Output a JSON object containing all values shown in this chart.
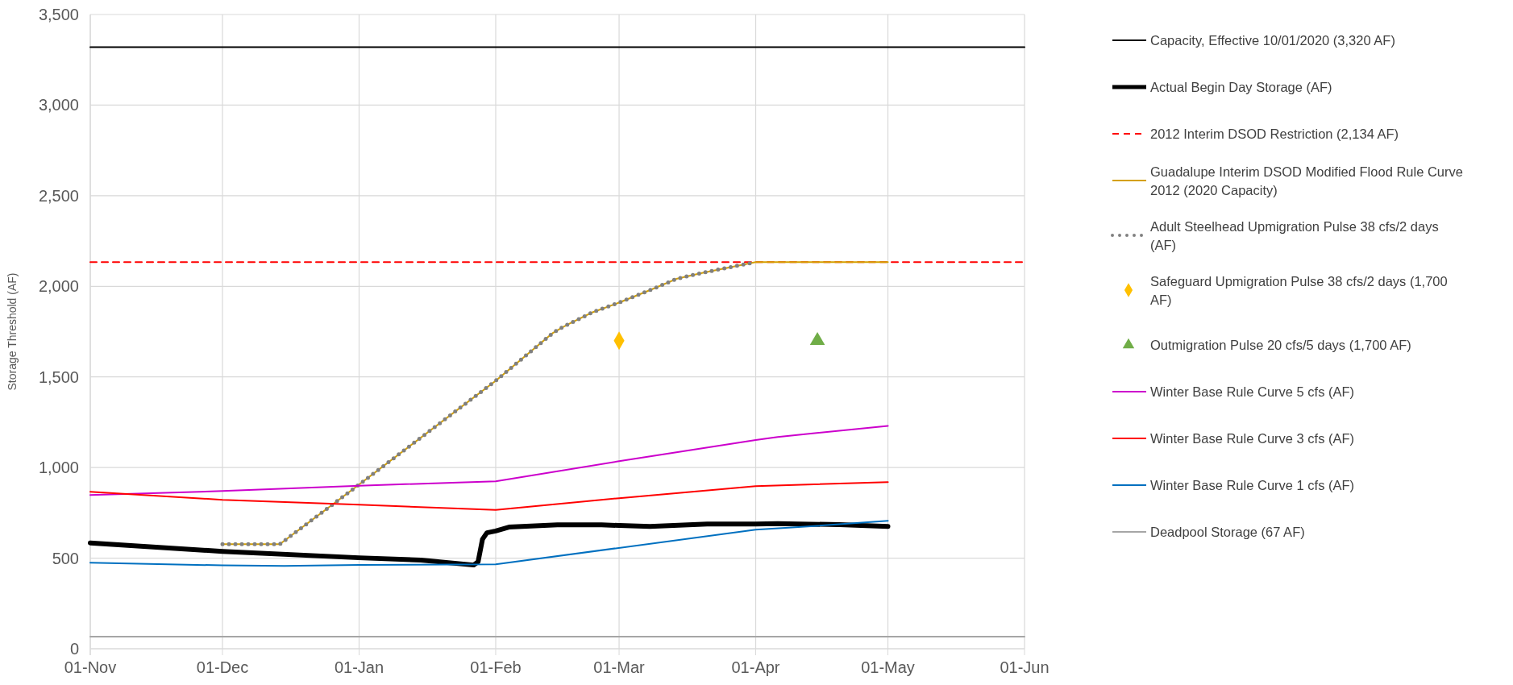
{
  "chart_data": {
    "type": "line",
    "ylabel": "Storage Threshold (AF)",
    "xlim": [
      "2020-11-01",
      "2021-06-01"
    ],
    "xticks": [
      {
        "value": "2020-11-01",
        "label": "01-Nov"
      },
      {
        "value": "2020-12-01",
        "label": "01-Dec"
      },
      {
        "value": "2021-01-01",
        "label": "01-Jan"
      },
      {
        "value": "2021-02-01",
        "label": "01-Feb"
      },
      {
        "value": "2021-03-01",
        "label": "01-Mar"
      },
      {
        "value": "2021-04-01",
        "label": "01-Apr"
      },
      {
        "value": "2021-05-01",
        "label": "01-May"
      },
      {
        "value": "2021-06-01",
        "label": "01-Jun"
      }
    ],
    "ylim": [
      0,
      3500
    ],
    "yticks": [
      0,
      {
        "value": 500,
        "label": "500"
      },
      {
        "value": 1000,
        "label": "1,000"
      },
      {
        "value": 1500,
        "label": "1,500"
      },
      {
        "value": 2000,
        "label": "2,000"
      },
      {
        "value": 2500,
        "label": "2,500"
      },
      {
        "value": 3000,
        "label": "3,000"
      },
      {
        "value": 3500,
        "label": "3,500"
      }
    ],
    "grid": true,
    "legend": "right",
    "series": [
      {
        "name": "Capacity, Effective 10/01/2020 (3,320 AF)",
        "color": "#000000",
        "x": [
          "2020-11-01",
          "2021-06-01"
        ],
        "values": [
          3320,
          3320
        ]
      },
      {
        "name": "Actual Begin Day Storage (AF)",
        "color": "#000000",
        "x": [
          "2020-11-01",
          "2020-12-01",
          "2021-01-01",
          "2021-01-15",
          "2021-01-27",
          "2021-01-28",
          "2021-01-29",
          "2021-01-30",
          "2021-02-01",
          "2021-02-04",
          "2021-02-15",
          "2021-02-25",
          "2021-03-01",
          "2021-03-08",
          "2021-03-21",
          "2021-04-01",
          "2021-04-06",
          "2021-04-20",
          "2021-05-01"
        ],
        "values": [
          584,
          537,
          502,
          489,
          462,
          480,
          604,
          640,
          650,
          671,
          684,
          684,
          680,
          675,
          688,
          688,
          690,
          685,
          675
        ]
      },
      {
        "name": "2012 Interim DSOD Restriction (2,134 AF)",
        "color": "#ff0000",
        "line_style": "dashed",
        "x": [
          "2020-11-01",
          "2021-06-01"
        ],
        "values": [
          2134,
          2134
        ]
      },
      {
        "name": "Guadalupe Interim DSOD Modified Flood Rule Curve 2012 (2020 Capacity)",
        "color": "#d4a000",
        "x": [
          "2020-12-01",
          "2020-12-14",
          "2021-01-01",
          "2021-02-01",
          "2021-02-14",
          "2021-02-16",
          "2021-02-18",
          "2021-02-23",
          "2021-03-01",
          "2021-03-08",
          "2021-03-14",
          "2021-03-20",
          "2021-04-01",
          "2021-05-01"
        ],
        "values": [
          577,
          577,
          906,
          1479,
          1743,
          1772,
          1797,
          1857,
          1910,
          1979,
          2041,
          2075,
          2134,
          2134
        ]
      },
      {
        "name": "Adult Steelhead Upmigration Pulse 38 cfs/2 days (AF)",
        "color": "#808080",
        "line_style": "dotted",
        "x": [
          "2020-12-01",
          "2020-12-14",
          "2021-01-01",
          "2021-02-01",
          "2021-02-14",
          "2021-02-16",
          "2021-02-18",
          "2021-02-23",
          "2021-03-01",
          "2021-03-08",
          "2021-03-14",
          "2021-03-20",
          "2021-04-01"
        ],
        "values": [
          577,
          577,
          906,
          1479,
          1743,
          1772,
          1797,
          1857,
          1910,
          1979,
          2041,
          2075,
          2134
        ]
      },
      {
        "name": "Safeguard Upmigration Pulse 38 cfs/2 days (1,700 AF)",
        "type": "scatter",
        "marker": "diamond",
        "color": "#ffc000",
        "x": [
          "2021-03-01"
        ],
        "values": [
          1700
        ]
      },
      {
        "name": "Outmigration Pulse 20 cfs/5 days (1,700 AF)",
        "type": "scatter",
        "marker": "triangle",
        "color": "#70ad47",
        "x": [
          "2021-04-15"
        ],
        "values": [
          1700
        ]
      },
      {
        "name": "Winter Base Rule Curve 5 cfs (AF)",
        "color": "#cc00cc",
        "x": [
          "2020-11-01",
          "2020-12-01",
          "2021-01-01",
          "2021-02-01",
          "2021-03-01",
          "2021-04-01",
          "2021-04-06",
          "2021-05-01"
        ],
        "values": [
          848,
          870,
          900,
          924,
          1035,
          1152,
          1169,
          1230
        ]
      },
      {
        "name": "Winter Base Rule Curve 3 cfs (AF)",
        "color": "#ff0000",
        "x": [
          "2020-11-01",
          "2020-12-01",
          "2021-01-01",
          "2021-02-01",
          "2021-03-01",
          "2021-04-01",
          "2021-05-01"
        ],
        "values": [
          866,
          822,
          795,
          766,
          831,
          897,
          920
        ]
      },
      {
        "name": "Winter Base Rule Curve 1 cfs (AF)",
        "color": "#0070c0",
        "x": [
          "2020-11-01",
          "2020-12-01",
          "2020-12-15",
          "2021-01-01",
          "2021-02-01",
          "2021-04-01",
          "2021-04-10",
          "2021-05-01"
        ],
        "values": [
          475,
          460,
          457,
          462,
          466,
          657,
          670,
          706
        ]
      },
      {
        "name": "Deadpool Storage (67 AF)",
        "color": "#a6a6a6",
        "x": [
          "2020-11-01",
          "2021-06-01"
        ],
        "values": [
          67,
          67
        ]
      }
    ]
  }
}
